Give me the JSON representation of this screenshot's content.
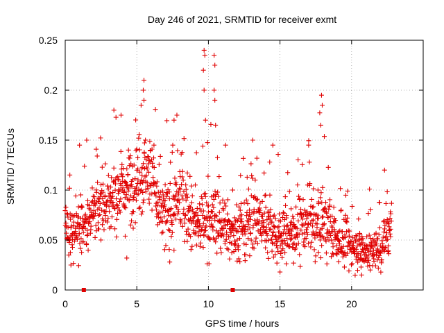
{
  "chart_data": {
    "type": "scatter",
    "title": "Day 246 of 2021, SRMTID for receiver exmt",
    "xlabel": "GPS time / hours",
    "ylabel": "SRMTID / TECUs",
    "xlim": [
      0,
      25
    ],
    "ylim": [
      0,
      0.25
    ],
    "x_ticks": [
      0,
      5,
      10,
      15,
      20
    ],
    "x_tick_labels": [
      "0",
      "5",
      "10",
      "15",
      "20"
    ],
    "y_ticks": [
      0,
      0.05,
      0.1,
      0.15,
      0.2,
      0.25
    ],
    "y_tick_labels": [
      "0",
      "0.05",
      "0.1",
      "0.15",
      "0.2",
      "0.25"
    ],
    "grid": true,
    "legend": "none",
    "marker": "plus",
    "color": "#e00000",
    "marker_count": 1400,
    "envelope": {
      "description": "approximate mean SRMTID level and spread of the dense cloud of + markers, in data units",
      "hours": [
        0,
        0.5,
        1,
        1.5,
        2,
        2.5,
        3,
        3.5,
        4,
        4.5,
        5,
        5.5,
        6,
        6.5,
        7,
        7.5,
        8,
        8.5,
        9,
        9.5,
        10,
        10.5,
        11,
        11.5,
        12,
        12.5,
        13,
        13.5,
        14,
        14.5,
        15,
        15.5,
        16,
        16.5,
        17,
        17.5,
        18,
        18.5,
        19,
        19.5,
        20,
        20.5,
        21,
        21.5,
        22,
        22.5,
        22.8
      ],
      "mean": [
        0.06,
        0.05,
        0.065,
        0.07,
        0.075,
        0.085,
        0.09,
        0.095,
        0.1,
        0.105,
        0.11,
        0.12,
        0.12,
        0.08,
        0.075,
        0.08,
        0.09,
        0.08,
        0.065,
        0.07,
        0.07,
        0.07,
        0.065,
        0.06,
        0.06,
        0.06,
        0.07,
        0.07,
        0.065,
        0.06,
        0.055,
        0.06,
        0.06,
        0.07,
        0.065,
        0.06,
        0.07,
        0.06,
        0.05,
        0.045,
        0.045,
        0.04,
        0.04,
        0.04,
        0.04,
        0.06,
        0.065
      ],
      "spread": [
        0.025,
        0.02,
        0.03,
        0.03,
        0.025,
        0.03,
        0.03,
        0.03,
        0.035,
        0.035,
        0.035,
        0.04,
        0.04,
        0.035,
        0.03,
        0.035,
        0.035,
        0.035,
        0.03,
        0.035,
        0.035,
        0.03,
        0.03,
        0.025,
        0.025,
        0.03,
        0.03,
        0.03,
        0.03,
        0.025,
        0.025,
        0.03,
        0.03,
        0.03,
        0.03,
        0.03,
        0.035,
        0.025,
        0.02,
        0.02,
        0.02,
        0.018,
        0.018,
        0.018,
        0.02,
        0.025,
        0.02
      ]
    },
    "x_range_data": [
      0,
      22.8
    ],
    "peaks": [
      {
        "x": 9.7,
        "y": 0.24
      },
      {
        "x": 9.75,
        "y": 0.235
      },
      {
        "x": 9.65,
        "y": 0.22
      },
      {
        "x": 9.7,
        "y": 0.2
      },
      {
        "x": 10.4,
        "y": 0.235
      },
      {
        "x": 10.45,
        "y": 0.225
      },
      {
        "x": 10.4,
        "y": 0.2
      },
      {
        "x": 10.45,
        "y": 0.19
      },
      {
        "x": 5.5,
        "y": 0.21
      },
      {
        "x": 5.45,
        "y": 0.2
      },
      {
        "x": 5.5,
        "y": 0.19
      },
      {
        "x": 5.3,
        "y": 0.185
      },
      {
        "x": 3.4,
        "y": 0.18
      },
      {
        "x": 3.9,
        "y": 0.175
      },
      {
        "x": 7.8,
        "y": 0.175
      },
      {
        "x": 7.6,
        "y": 0.17
      },
      {
        "x": 9.8,
        "y": 0.17
      },
      {
        "x": 10.5,
        "y": 0.165
      },
      {
        "x": 17.9,
        "y": 0.195
      },
      {
        "x": 17.95,
        "y": 0.185
      },
      {
        "x": 17.85,
        "y": 0.165
      },
      {
        "x": 11.2,
        "y": 0.145
      },
      {
        "x": 13.1,
        "y": 0.15
      },
      {
        "x": 14.5,
        "y": 0.145
      },
      {
        "x": 1.0,
        "y": 0.145
      },
      {
        "x": 1.5,
        "y": 0.15
      },
      {
        "x": 17.0,
        "y": 0.145
      },
      {
        "x": 22.3,
        "y": 0.12
      }
    ],
    "lows": [
      {
        "x": 0.4,
        "y": 0.025
      },
      {
        "x": 15.0,
        "y": 0.018
      },
      {
        "x": 20.7,
        "y": 0.015
      },
      {
        "x": 21.3,
        "y": 0.02
      },
      {
        "x": 7.3,
        "y": 0.028
      },
      {
        "x": 4.3,
        "y": 0.032
      }
    ],
    "baseline_markers": [
      {
        "x": 1.3,
        "y": 0
      },
      {
        "x": 11.7,
        "y": 0
      }
    ]
  }
}
